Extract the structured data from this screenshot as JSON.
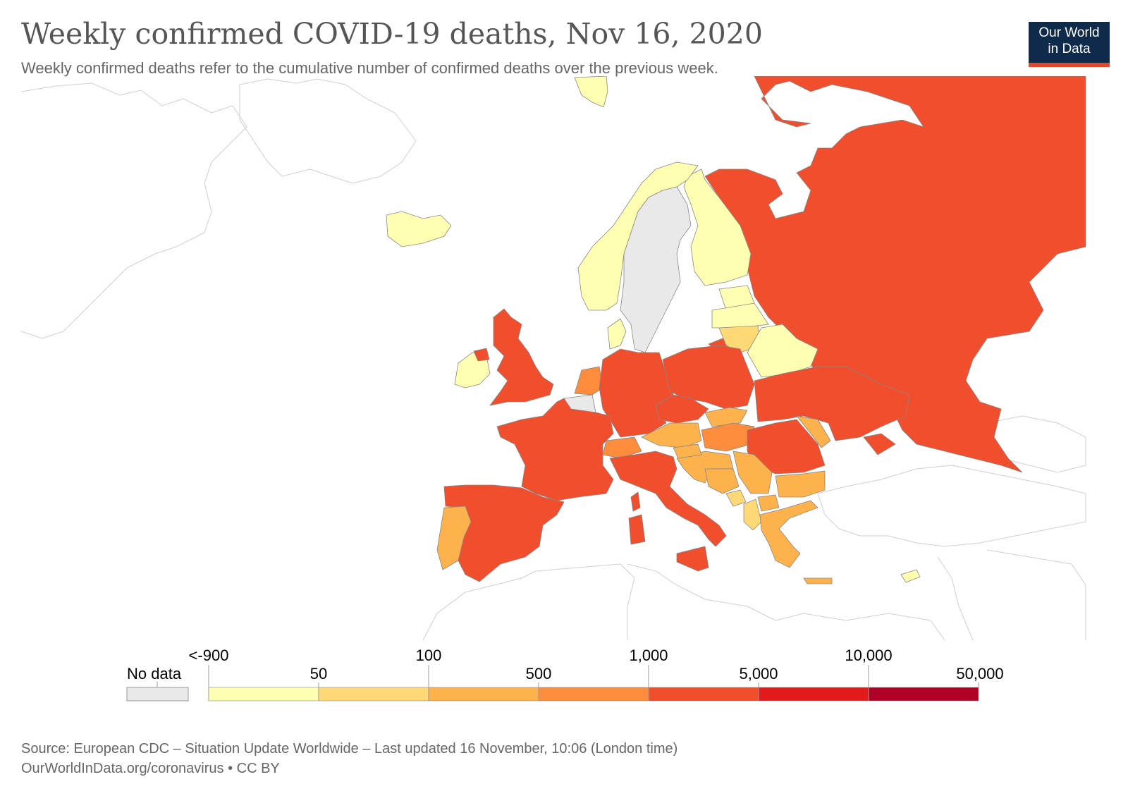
{
  "title": "Weekly confirmed COVID-19 deaths, Nov 16, 2020",
  "subtitle": "Weekly confirmed deaths refer to the cumulative number of confirmed deaths over the previous week.",
  "logo": {
    "line1": "Our World",
    "line2": "in Data"
  },
  "legend": {
    "no_data_label": "No data",
    "upper_labels": [
      "<-900",
      "100",
      "1,000",
      "10,000"
    ],
    "lower_labels": [
      "50",
      "500",
      "5,000",
      "50,000"
    ],
    "bins": [
      {
        "color": "#ffffb2"
      },
      {
        "color": "#fed976"
      },
      {
        "color": "#feb24c"
      },
      {
        "color": "#fd8d3c"
      },
      {
        "color": "#f04e2c"
      },
      {
        "color": "#e31a1c"
      },
      {
        "color": "#b10026"
      }
    ],
    "no_data_color": "#e9e9e9"
  },
  "colors": {
    "bin_1": "#ffffb2",
    "bin_2": "#fed976",
    "bin_3": "#feb24c",
    "bin_4": "#fd8d3c",
    "bin_5": "#f04e2c",
    "no_data": "#e9e9e9"
  },
  "source_line1": "Source: European CDC – Situation Update Worldwide – Last updated 16 November, 10:06 (London time)",
  "source_line2": "OurWorldInData.org/coronavirus • CC BY"
}
